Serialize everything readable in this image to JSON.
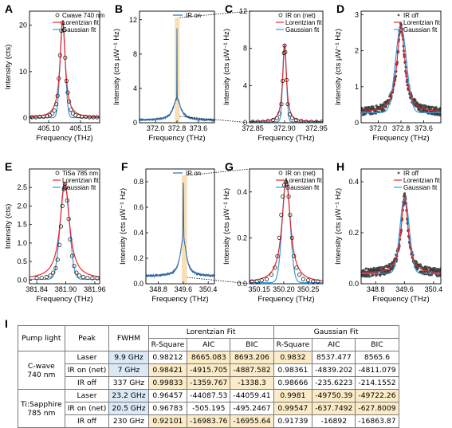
{
  "chart_data": [
    {
      "panel": "A",
      "type": "scatter",
      "xlabel": "Frequency (THz)",
      "ylabel": "Intensity (cts)",
      "xlim": [
        405.07,
        405.18
      ],
      "ylim": [
        -1,
        23
      ],
      "xticks": [
        "405.10",
        "405.15"
      ],
      "yticks": [
        "0",
        "10",
        "20"
      ],
      "legend": {
        "position": "top-right",
        "entries": [
          "Cwave 740 nm",
          "Lorentzian fit",
          "Gaussian fit"
        ]
      },
      "peak": {
        "x0": 405.122,
        "amplitude": 20.6,
        "lorentz_fwhm": 0.0099,
        "gauss_fwhm": 0.0095,
        "baseline": 0.1
      },
      "series": [
        {
          "kind": "markers",
          "x": [
            405.074,
            405.08,
            405.086,
            405.092,
            405.098,
            405.102,
            405.106,
            405.109,
            405.112,
            405.114,
            405.116,
            405.118,
            405.12,
            405.122,
            405.124,
            405.126,
            405.128,
            405.13,
            405.132,
            405.135,
            405.138,
            405.142,
            405.147,
            405.152,
            405.158,
            405.164,
            405.17,
            405.176
          ],
          "y": [
            0.2,
            0.2,
            0.3,
            0.3,
            0.4,
            0.6,
            1.0,
            1.6,
            3.0,
            4.8,
            8.5,
            13.5,
            18.8,
            20.5,
            18.9,
            13.0,
            8.0,
            5.5,
            3.6,
            1.8,
            1.0,
            0.6,
            0.4,
            0.3,
            0.3,
            0.2,
            0.2,
            0.2
          ]
        }
      ]
    },
    {
      "panel": "B",
      "type": "line",
      "xlabel": "Frequency (THz)",
      "ylabel": "Intensity (cts μW⁻¹ Hz)",
      "xlim": [
        371.4,
        374.2
      ],
      "ylim": [
        0,
        13
      ],
      "xticks": [
        "372.0",
        "372.8",
        "373.6"
      ],
      "yticks": [
        "0",
        "4",
        "8",
        "12"
      ],
      "legend": {
        "position": "top-right",
        "entries": [
          "IR on"
        ]
      },
      "highlight": [
        372.72,
        372.9
      ],
      "peak": {
        "x0": 372.8,
        "broad_amplitude": 2.5,
        "broad_fwhm": 0.337,
        "narrow_amplitude": 8.3,
        "narrow_fwhm": 0.007,
        "baseline": 0.3
      }
    },
    {
      "panel": "C",
      "type": "scatter",
      "xlabel": "Frequency (THz)",
      "ylabel": "Intensity (cts μW⁻¹ Hz)",
      "xlim": [
        372.845,
        372.96
      ],
      "ylim": [
        0,
        12
      ],
      "xticks": [
        "372.85",
        "372.90",
        "372.95"
      ],
      "yticks": [
        "0",
        "4",
        "8",
        "12"
      ],
      "legend": {
        "position": "top-right",
        "entries": [
          "IR on (net)",
          "Lorentzian fit",
          "Gaussian fit"
        ]
      },
      "peak": {
        "x0": 372.9,
        "amplitude": 8.3,
        "lorentz_fwhm": 0.007,
        "gauss_fwhm": 0.0068,
        "baseline": 0.1
      },
      "series": [
        {
          "kind": "markers",
          "x": [
            372.85,
            372.858,
            372.866,
            372.874,
            372.882,
            372.888,
            372.892,
            372.895,
            372.897,
            372.899,
            372.9,
            372.901,
            372.903,
            372.905,
            372.908,
            372.912,
            372.918,
            372.926,
            372.934,
            372.942,
            372.95,
            372.958
          ],
          "y": [
            0.1,
            0.1,
            0.1,
            0.2,
            0.3,
            0.5,
            1.0,
            2.0,
            4.5,
            7.5,
            8.3,
            7.6,
            4.6,
            2.0,
            0.9,
            0.5,
            0.3,
            0.2,
            0.1,
            0.1,
            0.1,
            0.1
          ]
        }
      ]
    },
    {
      "panel": "D",
      "type": "scatter",
      "xlabel": "Frequency (THz)",
      "ylabel": "Intensity (cts μW⁻¹ Hz)",
      "xlim": [
        371.4,
        374.2
      ],
      "ylim": [
        0,
        3.1
      ],
      "xticks": [
        "372.0",
        "372.8",
        "373.6"
      ],
      "yticks": [
        "0",
        "1",
        "2",
        "3"
      ],
      "legend": {
        "position": "top-right",
        "entries": [
          "IR off",
          "Lorentzian fit",
          "Gaussian fit"
        ]
      },
      "peak": {
        "x0": 372.8,
        "amplitude": 2.4,
        "lorentz_fwhm": 0.337,
        "gauss_fwhm": 0.45,
        "baseline": 0.28
      }
    },
    {
      "panel": "E",
      "type": "scatter",
      "xlabel": "Frequency (THz)",
      "ylabel": "Intensity (cts)",
      "xlim": [
        381.825,
        381.97
      ],
      "ylim": [
        -0.1,
        3.0
      ],
      "xticks": [
        "381.84",
        "381.90",
        "381.96"
      ],
      "yticks": [
        "0.0",
        "0.5",
        "1.0",
        "1.5",
        "2.0",
        "2.5"
      ],
      "legend": {
        "position": "top-right",
        "entries": [
          "TiSa 785 nm",
          "Lorentzian fit",
          "Gaussian fit"
        ]
      },
      "peak": {
        "x0": 381.898,
        "amplitude": 2.6,
        "lorentz_fwhm": 0.0232,
        "gauss_fwhm": 0.022,
        "baseline": 0.02
      },
      "series": [
        {
          "kind": "markers",
          "x": [
            381.84,
            381.85,
            381.86,
            381.868,
            381.874,
            381.879,
            381.883,
            381.887,
            381.89,
            381.893,
            381.896,
            381.898,
            381.9,
            381.903,
            381.906,
            381.909,
            381.913,
            381.917,
            381.922,
            381.928,
            381.936,
            381.945,
            381.955,
            381.965
          ],
          "y": [
            0.05,
            0.06,
            0.08,
            0.12,
            0.2,
            0.32,
            0.55,
            0.95,
            1.45,
            2.0,
            2.45,
            2.6,
            2.5,
            2.15,
            1.65,
            1.1,
            0.65,
            0.38,
            0.2,
            0.12,
            0.08,
            0.06,
            0.05,
            0.05
          ]
        }
      ]
    },
    {
      "panel": "F",
      "type": "line",
      "xlabel": "Frequency (THz)",
      "ylabel": "Intensity (cts μW⁻¹ Hz)",
      "xlim": [
        348.4,
        350.6
      ],
      "ylim": [
        0,
        0.9
      ],
      "xticks": [
        "348.8",
        "349.6",
        "350.4"
      ],
      "yticks": [
        "0.0",
        "0.2",
        "0.4",
        "0.6",
        "0.8"
      ],
      "legend": {
        "position": "top-right",
        "entries": [
          "IR on"
        ]
      },
      "highlight": [
        349.55,
        349.72
      ],
      "peak": {
        "x0": 349.6,
        "broad_amplitude": 0.3,
        "broad_fwhm": 0.23,
        "narrow_amplitude": 0.44,
        "narrow_fwhm": 0.0205,
        "baseline": 0.06
      }
    },
    {
      "panel": "G",
      "type": "scatter",
      "xlabel": "Frequency (THz)",
      "ylabel": "Intensity (cts μW⁻¹ Hz)",
      "xlim": [
        350.13,
        350.28
      ],
      "ylim": [
        0,
        0.5
      ],
      "xticks": [
        "350.15",
        "350.20",
        "350.25"
      ],
      "yticks": [
        "0.0",
        "0.2",
        "0.4"
      ],
      "legend": {
        "position": "top-right",
        "entries": [
          "IR on (net)",
          "Lorentzian fit",
          "Gaussian fit"
        ]
      },
      "peak": {
        "x0": 350.205,
        "amplitude": 0.45,
        "lorentz_fwhm": 0.0205,
        "gauss_fwhm": 0.019,
        "baseline": 0.005
      },
      "series": [
        {
          "kind": "markers",
          "x": [
            350.135,
            350.145,
            350.155,
            350.165,
            350.175,
            350.182,
            350.187,
            350.191,
            350.195,
            350.198,
            350.201,
            350.204,
            350.207,
            350.21,
            350.213,
            350.217,
            350.221,
            350.226,
            350.232,
            350.24,
            350.25,
            350.26,
            350.27
          ],
          "y": [
            0.01,
            0.01,
            0.015,
            0.02,
            0.04,
            0.07,
            0.12,
            0.2,
            0.3,
            0.38,
            0.43,
            0.445,
            0.43,
            0.38,
            0.3,
            0.2,
            0.12,
            0.07,
            0.04,
            0.02,
            0.015,
            0.01,
            0.01
          ]
        }
      ]
    },
    {
      "panel": "H",
      "type": "scatter",
      "xlabel": "Frequency (THz)",
      "ylabel": "Intensity (cts μW⁻¹ Hz)",
      "xlim": [
        348.4,
        350.6
      ],
      "ylim": [
        0,
        0.45
      ],
      "xticks": [
        "348.8",
        "349.6",
        "350.4"
      ],
      "yticks": [
        "0.0",
        "0.2",
        "0.4"
      ],
      "legend": {
        "position": "top-right",
        "entries": [
          "IR off",
          "Lorentzian fit",
          "Gaussian fit"
        ]
      },
      "peak": {
        "x0": 349.6,
        "amplitude": 0.3,
        "lorentz_fwhm": 0.23,
        "gauss_fwhm": 0.3,
        "baseline": 0.04
      }
    },
    {
      "panel": "I",
      "type": "table",
      "group_headers": [
        "Lorentzian Fit",
        "Gaussian Fit"
      ],
      "columns": [
        "Pump light",
        "Peak",
        "FWHM",
        "R-Square",
        "AIC",
        "BIC",
        "R-Square",
        "AIC",
        "BIC"
      ],
      "groups": [
        {
          "pump": [
            "C-wave",
            "740 nm"
          ],
          "rows": [
            {
              "peak": "Laser",
              "fwhm": "9.9 GHz",
              "values": [
                "0.98212",
                "8665.083",
                "8693.206",
                "0.9832",
                "8537.477",
                "8565.6"
              ]
            },
            {
              "peak": "IR on (net)",
              "fwhm": "7 GHz",
              "values": [
                "0.98421",
                "-4915.705",
                "-4887.582",
                "0.98361",
                "-4839.202",
                "-4811.079"
              ]
            },
            {
              "peak": "IR off",
              "fwhm": "337 GHz",
              "values": [
                "0.99833",
                "-1359.767",
                "-1338.3",
                "0.98666",
                "-235.6223",
                "-214.1552"
              ]
            }
          ]
        },
        {
          "pump": [
            "Ti:Sapphire",
            "785 nm"
          ],
          "rows": [
            {
              "peak": "Laser",
              "fwhm": "23.2 GHz",
              "values": [
                "0.96457",
                "-44087.53",
                "-44059.41",
                "0.9981",
                "-49750.39",
                "-49722.26"
              ]
            },
            {
              "peak": "IR on (net)",
              "fwhm": "20.5 GHz",
              "values": [
                "0.96783",
                "-505.195",
                "-495.2467",
                "0.99547",
                "-637.7492",
                "-627.8009"
              ]
            },
            {
              "peak": "IR off",
              "fwhm": "230 GHz",
              "values": [
                "0.92101",
                "-16983.76",
                "-16955.64",
                "0.91739",
                "-16892",
                "-16863.87"
              ]
            }
          ]
        }
      ],
      "highlight_colors": {
        "fwhm": "#dbe9f6",
        "best_fit": "#fbebc7"
      }
    }
  ],
  "colors": {
    "lorentzian": "#e8262c",
    "gaussian": "#3a9ad9",
    "ir_on_line": "#2e6aa6",
    "markers": "#222222",
    "highlight_band": "#f8dfb8"
  },
  "panel_labels": [
    "A",
    "B",
    "C",
    "D",
    "E",
    "F",
    "G",
    "H"
  ],
  "table_label": "I"
}
